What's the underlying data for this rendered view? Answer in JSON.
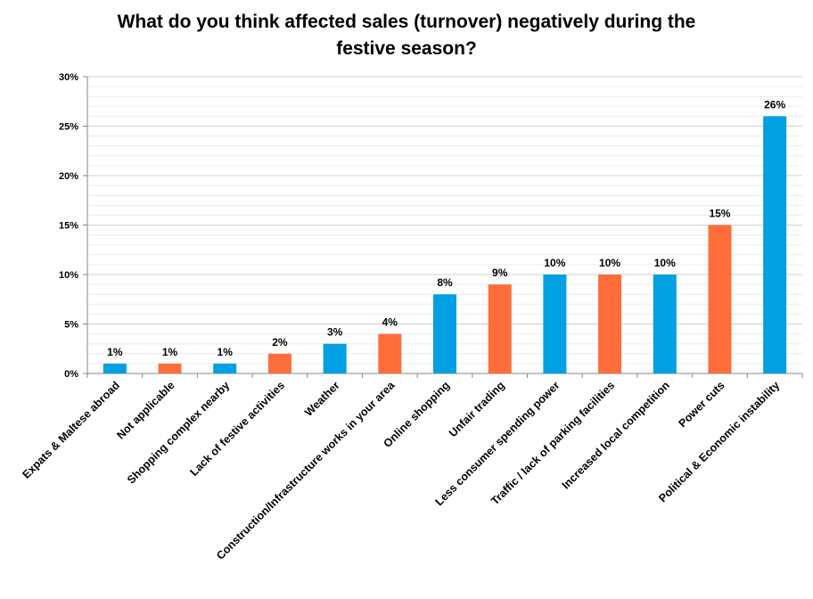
{
  "title_line1": "What do you think affected sales (turnover) negatively during the",
  "title_line2": "festive season?",
  "chart_data": {
    "type": "bar",
    "categories": [
      "Expats & Maltese abroad",
      "Not applicable",
      "Shopping complex nearby",
      "Lack of festive activities",
      "Weather",
      "Construction/Infrastructure works in your area",
      "Online shopping",
      "Unfair trading",
      "Less consumer spending power",
      "Traffic / lack of parking facilities",
      "Increased local competition",
      "Power cuts",
      "Political & Economic instability"
    ],
    "values": [
      1,
      1,
      1,
      2,
      3,
      4,
      8,
      9,
      10,
      10,
      10,
      15,
      26
    ],
    "data_labels": [
      "1%",
      "1%",
      "1%",
      "2%",
      "3%",
      "4%",
      "8%",
      "9%",
      "10%",
      "10%",
      "10%",
      "15%",
      "26%"
    ],
    "colors": [
      "#00A0E3",
      "#FF6E3A",
      "#00A0E3",
      "#FF6E3A",
      "#00A0E3",
      "#FF6E3A",
      "#00A0E3",
      "#FF6E3A",
      "#00A0E3",
      "#FF6E3A",
      "#00A0E3",
      "#FF6E3A",
      "#00A0E3"
    ],
    "ylim": [
      0,
      30
    ],
    "yticks": [
      0,
      5,
      10,
      15,
      20,
      25,
      30
    ],
    "ytick_labels": [
      "0%",
      "5%",
      "10%",
      "15%",
      "20%",
      "25%",
      "30%"
    ],
    "minor_grid_step": 1,
    "grid": true,
    "legend": "none"
  }
}
